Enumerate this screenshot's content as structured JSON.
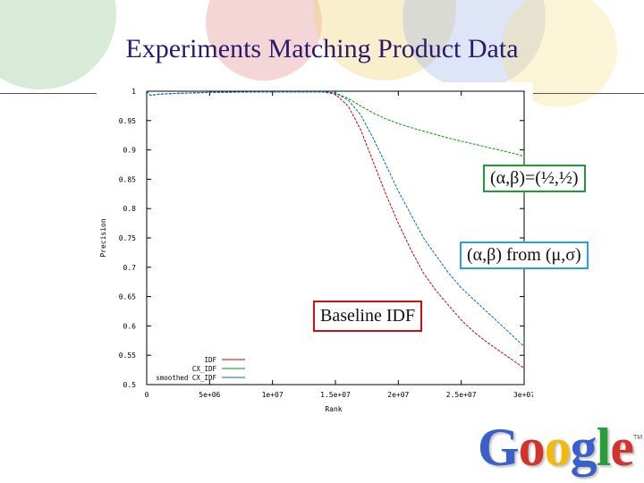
{
  "slide": {
    "title": "Experiments Matching Product Data",
    "logo_letters": [
      "G",
      "o",
      "o",
      "g",
      "l",
      "e"
    ],
    "logo_colors": [
      "#3b5fc8",
      "#d0342c",
      "#f2b90f",
      "#3b5fc8",
      "#2a9d3a",
      "#d0342c"
    ],
    "logo_tm": "TM"
  },
  "callouts": {
    "green": {
      "text": "(α,β)=(½,½)",
      "border": "#1f9b3a"
    },
    "blue": {
      "text": "(α,β) from (μ,σ)",
      "border": "#29a3d6"
    },
    "red": {
      "text": "Baseline IDF",
      "border": "#cc1111"
    }
  },
  "chart_data": {
    "type": "line",
    "xlabel": "Rank",
    "ylabel": "Precision",
    "xlim": [
      0,
      30000000
    ],
    "ylim": [
      0.5,
      1.0
    ],
    "x_ticks": [
      0,
      5000000,
      10000000,
      15000000,
      20000000,
      25000000,
      30000000
    ],
    "x_tick_labels": [
      "0",
      "5e+06",
      "1e+07",
      "1.5e+07",
      "2e+07",
      "2.5e+07",
      "3e+07"
    ],
    "y_ticks": [
      0.5,
      0.55,
      0.6,
      0.65,
      0.7,
      0.75,
      0.8,
      0.85,
      0.9,
      0.95,
      1.0
    ],
    "y_tick_labels": [
      "0.5",
      "0.55",
      "0.6",
      "0.65",
      "0.7",
      "0.75",
      "0.8",
      "0.85",
      "0.9",
      "0.95",
      "1"
    ],
    "grid": true,
    "legend_position": "bottom-left",
    "series": [
      {
        "name": "IDF",
        "color": "#cc0000",
        "x": [
          0,
          300000,
          1000000,
          2000000,
          5000000,
          10000000,
          14000000,
          15000000,
          16000000,
          17000000,
          18000000,
          19000000,
          20000000,
          21000000,
          22000000,
          23000000,
          24000000,
          25000000,
          26000000,
          27000000,
          28000000,
          29000000,
          30000000
        ],
        "y": [
          1.0,
          0.993,
          0.995,
          0.996,
          0.998,
          0.999,
          0.999,
          0.995,
          0.975,
          0.935,
          0.88,
          0.825,
          0.775,
          0.73,
          0.69,
          0.66,
          0.635,
          0.61,
          0.59,
          0.573,
          0.558,
          0.543,
          0.528
        ]
      },
      {
        "name": "CX_IDF",
        "color": "#009900",
        "x": [
          0,
          300000,
          1000000,
          2000000,
          5000000,
          10000000,
          14000000,
          15000000,
          16000000,
          17000000,
          18000000,
          19000000,
          20000000,
          21000000,
          22000000,
          23000000,
          24000000,
          25000000,
          26000000,
          27000000,
          28000000,
          29000000,
          30000000
        ],
        "y": [
          1.0,
          0.993,
          0.995,
          0.996,
          0.998,
          0.999,
          0.999,
          0.997,
          0.988,
          0.975,
          0.963,
          0.953,
          0.945,
          0.938,
          0.932,
          0.926,
          0.92,
          0.915,
          0.91,
          0.905,
          0.9,
          0.895,
          0.889
        ]
      },
      {
        "name": "smoothed CX_IDF",
        "color": "#0066cc",
        "x": [
          0,
          300000,
          1000000,
          2000000,
          5000000,
          10000000,
          14000000,
          15000000,
          16000000,
          17000000,
          18000000,
          19000000,
          20000000,
          21000000,
          22000000,
          23000000,
          24000000,
          25000000,
          26000000,
          27000000,
          28000000,
          29000000,
          30000000
        ],
        "y": [
          1.0,
          0.993,
          0.995,
          0.996,
          0.998,
          0.999,
          0.999,
          0.997,
          0.985,
          0.96,
          0.92,
          0.875,
          0.83,
          0.79,
          0.75,
          0.72,
          0.69,
          0.665,
          0.645,
          0.625,
          0.605,
          0.585,
          0.565
        ]
      }
    ]
  }
}
